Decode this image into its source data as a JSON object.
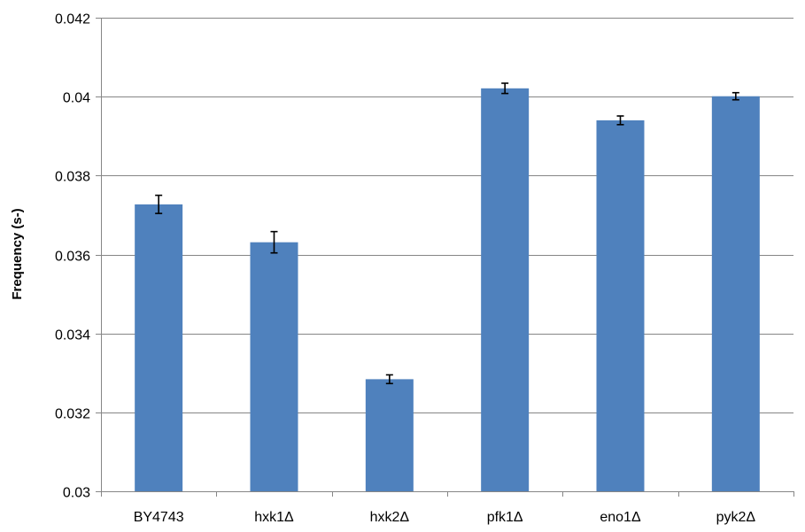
{
  "chart_data": {
    "type": "bar",
    "title": "",
    "xlabel": "",
    "ylabel": "Frequency (s-)",
    "categories": [
      "BY4743",
      "hxk1Δ",
      "hxk2Δ",
      "pfk1Δ",
      "eno1Δ",
      "pyk2Δ"
    ],
    "values": [
      0.03727,
      0.03631,
      0.03284,
      0.04021,
      0.0394,
      0.04001
    ],
    "errors": [
      0.00023,
      0.00027,
      0.00011,
      0.00013,
      0.00011,
      9e-05
    ],
    "ylim": [
      0.03,
      0.042
    ],
    "yticks": [
      "0.03",
      "0.032",
      "0.034",
      "0.036",
      "0.038",
      "0.04",
      "0.042"
    ],
    "ytick_values": [
      0.03,
      0.032,
      0.034,
      0.036,
      0.038,
      0.04,
      0.042
    ],
    "grid": true,
    "legend": "none",
    "colors": {
      "bar": "#4f81bd",
      "grid": "#868686",
      "axis": "#868686",
      "error": "#000000"
    }
  }
}
